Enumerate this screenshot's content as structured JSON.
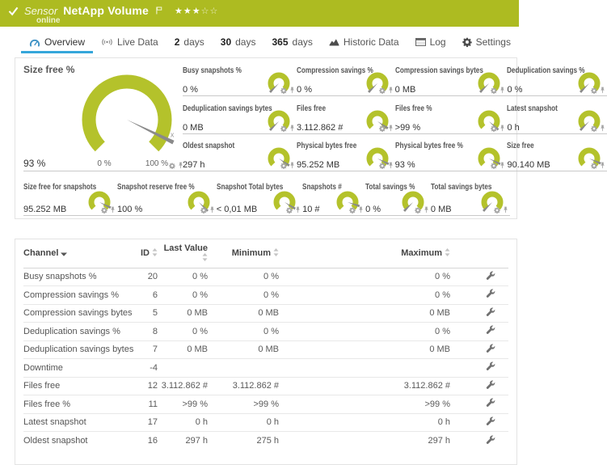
{
  "colors": {
    "header_bg": "#adbb21",
    "gauge_arc": "#b4c22b",
    "needle": "#8a8a8a",
    "tab_active_underline": "#35a6da",
    "tab_icon_blue": "#3f93c6"
  },
  "header": {
    "kind_label": "Sensor",
    "title": "NetApp Volume",
    "status": "online",
    "stars": {
      "filled": "★★★",
      "empty": "☆☆"
    }
  },
  "tabs": [
    {
      "id": "overview",
      "label": "Overview",
      "icon": "gauge-icon",
      "active": true
    },
    {
      "id": "live-data",
      "label": "Live Data",
      "icon": "live-icon"
    },
    {
      "id": "2-days",
      "num": "2",
      "label": "days"
    },
    {
      "id": "30-days",
      "num": "30",
      "label": "days"
    },
    {
      "id": "365-days",
      "num": "365",
      "label": "days"
    },
    {
      "id": "historic-data",
      "label": "Historic Data",
      "icon": "historic-icon"
    },
    {
      "id": "log",
      "label": "Log",
      "icon": "log-icon"
    },
    {
      "id": "settings",
      "label": "Settings",
      "icon": "settings-icon"
    }
  ],
  "gauges": {
    "primary": {
      "title": "Size free %",
      "value": "93 %",
      "scale_min": "0 %",
      "scale_max": "100 %",
      "fraction": 0.93,
      "marker": "x"
    },
    "small": [
      {
        "title": "Busy snapshots %",
        "value": "0 %",
        "fraction": 0
      },
      {
        "title": "Compression savings %",
        "value": "0 %",
        "fraction": 0
      },
      {
        "title": "Compression savings bytes",
        "value": "0 MB",
        "fraction": 0
      },
      {
        "title": "Deduplication savings %",
        "value": "0 %",
        "fraction": 0
      },
      {
        "title": "Deduplication savings bytes",
        "value": "0 MB",
        "fraction": 0
      },
      {
        "title": "Files free",
        "value": "3.112.862 #",
        "fraction": 0.96
      },
      {
        "title": "Files free %",
        "value": ">99 %",
        "fraction": 0.99
      },
      {
        "title": "Latest snapshot",
        "value": "0 h",
        "fraction": 0
      },
      {
        "title": "Oldest snapshot",
        "value": "297 h",
        "fraction": 0.96
      },
      {
        "title": "Physical bytes free",
        "value": "95.252 MB",
        "fraction": 0.93
      },
      {
        "title": "Physical bytes free %",
        "value": "93 %",
        "fraction": 0.93
      },
      {
        "title": "Size free",
        "value": "90.140 MB",
        "fraction": 0.92
      },
      {
        "title": "Size free for snapshots",
        "value": "95.252 MB",
        "fraction": 0.93
      },
      {
        "title": "Snapshot reserve free %",
        "value": "100 %",
        "fraction": 1
      },
      {
        "title": "Snapshot Total bytes",
        "value": "< 0,01 MB",
        "fraction": 0.95
      },
      {
        "title": "Snapshots #",
        "value": "10 #",
        "fraction": 0.9
      },
      {
        "title": "Total savings %",
        "value": "0 %",
        "fraction": 0
      },
      {
        "title": "Total savings bytes",
        "value": "0 MB",
        "fraction": 0
      }
    ]
  },
  "table": {
    "columns": [
      "Channel",
      "ID",
      "Last Value",
      "Minimum",
      "Maximum"
    ],
    "rows": [
      {
        "channel": "Busy snapshots %",
        "id": "20",
        "last": "0 %",
        "min": "0 %",
        "max": "0 %"
      },
      {
        "channel": "Compression savings %",
        "id": "6",
        "last": "0 %",
        "min": "0 %",
        "max": "0 %"
      },
      {
        "channel": "Compression savings bytes",
        "id": "5",
        "last": "0 MB",
        "min": "0 MB",
        "max": "0 MB"
      },
      {
        "channel": "Deduplication savings %",
        "id": "8",
        "last": "0 %",
        "min": "0 %",
        "max": "0 %"
      },
      {
        "channel": "Deduplication savings bytes",
        "id": "7",
        "last": "0 MB",
        "min": "0 MB",
        "max": "0 MB"
      },
      {
        "channel": "Downtime",
        "id": "-4",
        "last": "",
        "min": "",
        "max": ""
      },
      {
        "channel": "Files free",
        "id": "12",
        "last": "3.112.862 #",
        "min": "3.112.862 #",
        "max": "3.112.862 #"
      },
      {
        "channel": "Files free %",
        "id": "11",
        "last": ">99 %",
        "min": ">99 %",
        "max": ">99 %"
      },
      {
        "channel": "Latest snapshot",
        "id": "17",
        "last": "0 h",
        "min": "0 h",
        "max": "0 h"
      },
      {
        "channel": "Oldest snapshot",
        "id": "16",
        "last": "297 h",
        "min": "275 h",
        "max": "297 h"
      }
    ]
  },
  "icons": {
    "check-icon": "white checkmark",
    "flag-icon": "outlined priority flag",
    "gauge-icon": "blue semicircle gauge with needle",
    "live-icon": "broadcast dot with waves",
    "historic-icon": "filled area chart",
    "log-icon": "list report panel",
    "settings-icon": "gear",
    "gauge-settings-icon": "small gear",
    "gauge-pin-icon": "small pushpin",
    "sort-icon": "up-down triangles",
    "sort-desc-icon": "down triangle",
    "channel-settings-icon": "wrench"
  }
}
